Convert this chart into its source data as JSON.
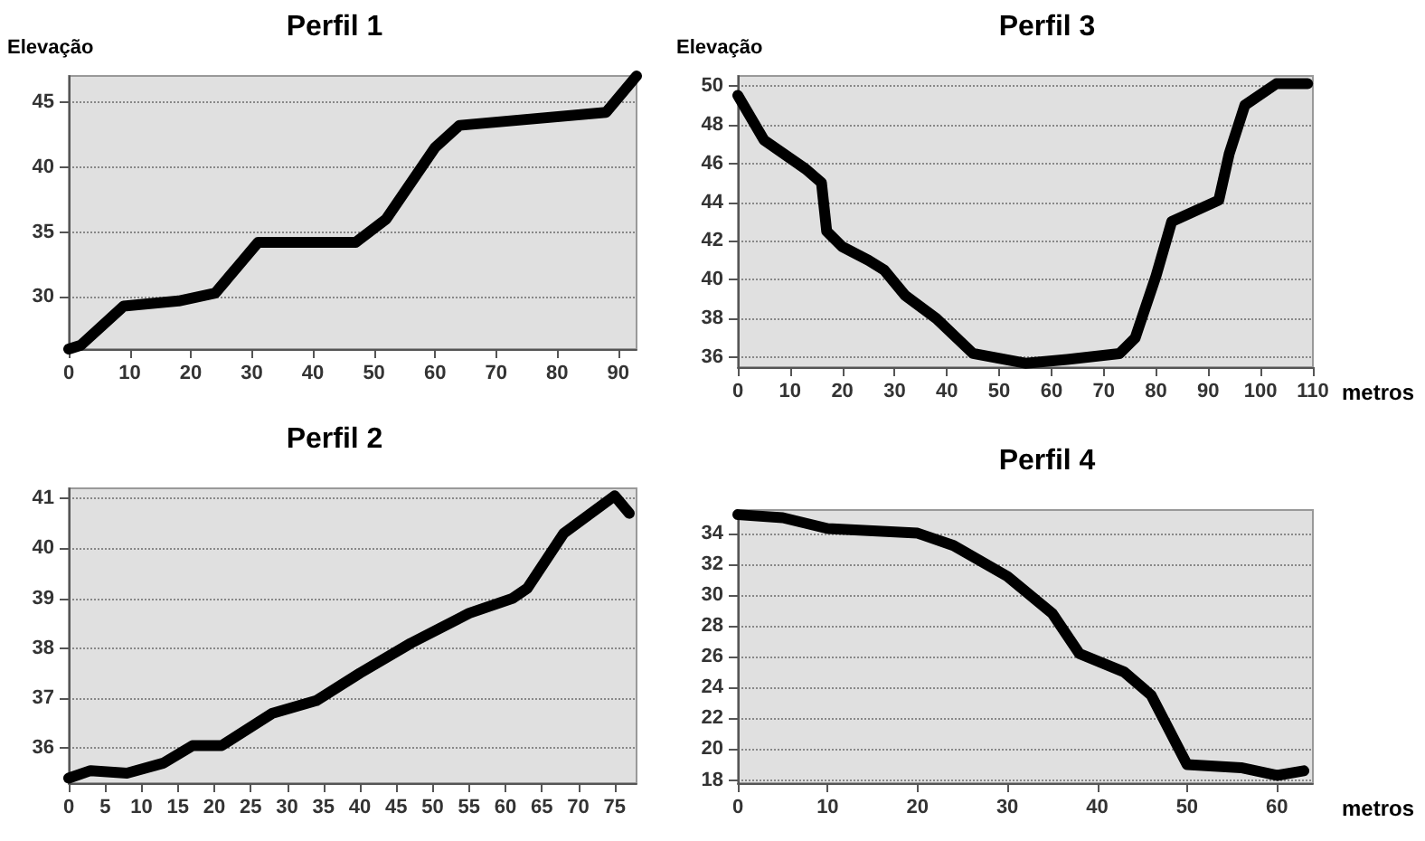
{
  "chart_data": [
    {
      "type": "line",
      "title": "Perfil 1",
      "ylabel": "Elevação",
      "x": [
        0,
        2,
        9,
        18,
        24,
        31,
        47,
        52,
        60,
        64,
        88,
        93
      ],
      "series": [
        {
          "color": "#000000",
          "values": [
            26,
            26.3,
            29.3,
            29.7,
            30.3,
            34.2,
            34.2,
            36,
            41.5,
            43.2,
            44.2,
            47
          ]
        }
      ],
      "xlim": [
        0,
        93
      ],
      "xticks": [
        0,
        10,
        20,
        30,
        40,
        50,
        60,
        70,
        80,
        90
      ],
      "ylim": [
        26,
        47
      ],
      "yticks": [
        30,
        35,
        40,
        45
      ],
      "grid": "y",
      "marker": "none",
      "line_style": "solid"
    },
    {
      "type": "line",
      "title": "Perfil 3",
      "ylabel": "Elevação",
      "xlabel": "metros",
      "x": [
        0,
        5,
        13,
        16,
        17,
        20,
        25,
        28,
        32,
        38,
        45,
        55,
        63,
        73,
        76,
        80,
        83,
        92,
        94,
        97,
        103,
        109
      ],
      "series": [
        {
          "color": "#000000",
          "values": [
            49.5,
            47.2,
            45.7,
            45,
            42.5,
            41.7,
            41,
            40.5,
            39.2,
            38,
            36.2,
            35.7,
            35.9,
            36.2,
            37,
            40.2,
            43,
            44.1,
            46.5,
            49,
            50.1,
            50.1
          ]
        }
      ],
      "xlim": [
        0,
        110
      ],
      "xticks": [
        0,
        10,
        20,
        30,
        40,
        50,
        60,
        70,
        80,
        90,
        100,
        110
      ],
      "ylim": [
        35.5,
        50.5
      ],
      "yticks": [
        36,
        38,
        40,
        42,
        44,
        46,
        48,
        50
      ],
      "grid": "y",
      "marker": "none",
      "line_style": "solid"
    },
    {
      "type": "line",
      "title": "Perfil 2",
      "x": [
        0,
        3,
        8,
        13,
        17,
        21,
        28,
        34,
        40,
        47,
        55,
        61,
        63,
        68,
        75,
        77
      ],
      "series": [
        {
          "color": "#000000",
          "values": [
            35.4,
            35.55,
            35.5,
            35.7,
            36.05,
            36.05,
            36.7,
            36.95,
            37.5,
            38.1,
            38.7,
            39,
            39.2,
            40.3,
            41.05,
            40.7
          ]
        }
      ],
      "xlim": [
        0,
        78
      ],
      "xticks": [
        0,
        5,
        10,
        15,
        20,
        25,
        30,
        35,
        40,
        45,
        50,
        55,
        60,
        65,
        70,
        75
      ],
      "ylim": [
        35.3,
        41.2
      ],
      "yticks": [
        36,
        37,
        38,
        39,
        40,
        41
      ],
      "grid": "y",
      "marker": "none",
      "line_style": "solid"
    },
    {
      "type": "line",
      "title": "Perfil 4",
      "xlabel": "metros",
      "x": [
        0,
        5,
        10,
        20,
        24,
        30,
        35,
        38,
        43,
        46,
        50,
        56,
        60,
        63
      ],
      "series": [
        {
          "color": "#000000",
          "values": [
            35.2,
            35,
            34.3,
            34,
            33.2,
            31.2,
            28.8,
            26.2,
            25,
            23.5,
            19,
            18.8,
            18.3,
            18.6
          ]
        }
      ],
      "xlim": [
        0,
        64
      ],
      "xticks": [
        0,
        10,
        20,
        30,
        40,
        50,
        60
      ],
      "ylim": [
        17.8,
        35.5
      ],
      "yticks": [
        18,
        20,
        22,
        24,
        26,
        28,
        30,
        32,
        34
      ],
      "grid": "y",
      "marker": "none",
      "line_style": "solid"
    }
  ]
}
